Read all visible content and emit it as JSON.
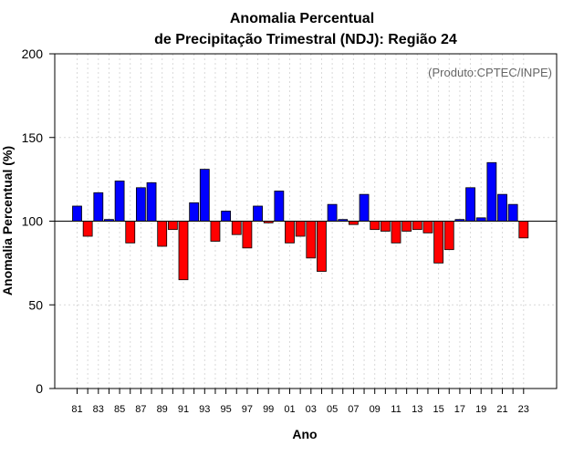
{
  "chart_data": {
    "type": "bar",
    "title": [
      "Anomalia Percentual",
      "de Precipitação Trimestral (NDJ): Região 24"
    ],
    "xlabel": "Ano",
    "ylabel": "Anomalia Percentual (%)",
    "credit": "(Produto:CPTEC/INPE)",
    "ylim": [
      0,
      200
    ],
    "yticks": [
      0,
      50,
      100,
      150,
      200
    ],
    "baseline": 100,
    "xtick_labels": [
      "81",
      "83",
      "85",
      "87",
      "89",
      "91",
      "93",
      "95",
      "97",
      "99",
      "01",
      "03",
      "05",
      "07",
      "09",
      "11",
      "13",
      "15",
      "17",
      "19",
      "21",
      "23"
    ],
    "categories": [
      "1981",
      "1982",
      "1983",
      "1984",
      "1985",
      "1986",
      "1987",
      "1988",
      "1989",
      "1990",
      "1991",
      "1992",
      "1993",
      "1994",
      "1995",
      "1996",
      "1997",
      "1998",
      "1999",
      "2000",
      "2001",
      "2002",
      "2003",
      "2004",
      "2005",
      "2006",
      "2007",
      "2008",
      "2009",
      "2010",
      "2011",
      "2012",
      "2013",
      "2014",
      "2015",
      "2016",
      "2017",
      "2018",
      "2019",
      "2020",
      "2021",
      "2022",
      "2023"
    ],
    "values": [
      109,
      91,
      117,
      101,
      124,
      87,
      120,
      123,
      85,
      95,
      65,
      111,
      131,
      88,
      106,
      92,
      84,
      109,
      99,
      118,
      87,
      91,
      78,
      70,
      110,
      101,
      98,
      116,
      95,
      94,
      87,
      94,
      95,
      93,
      75,
      83,
      101,
      120,
      102,
      135,
      116,
      110,
      90
    ],
    "colors": {
      "above": "#0000ff",
      "below": "#ff0000",
      "edge": "#000000",
      "grid": "#d9d9d9"
    }
  }
}
